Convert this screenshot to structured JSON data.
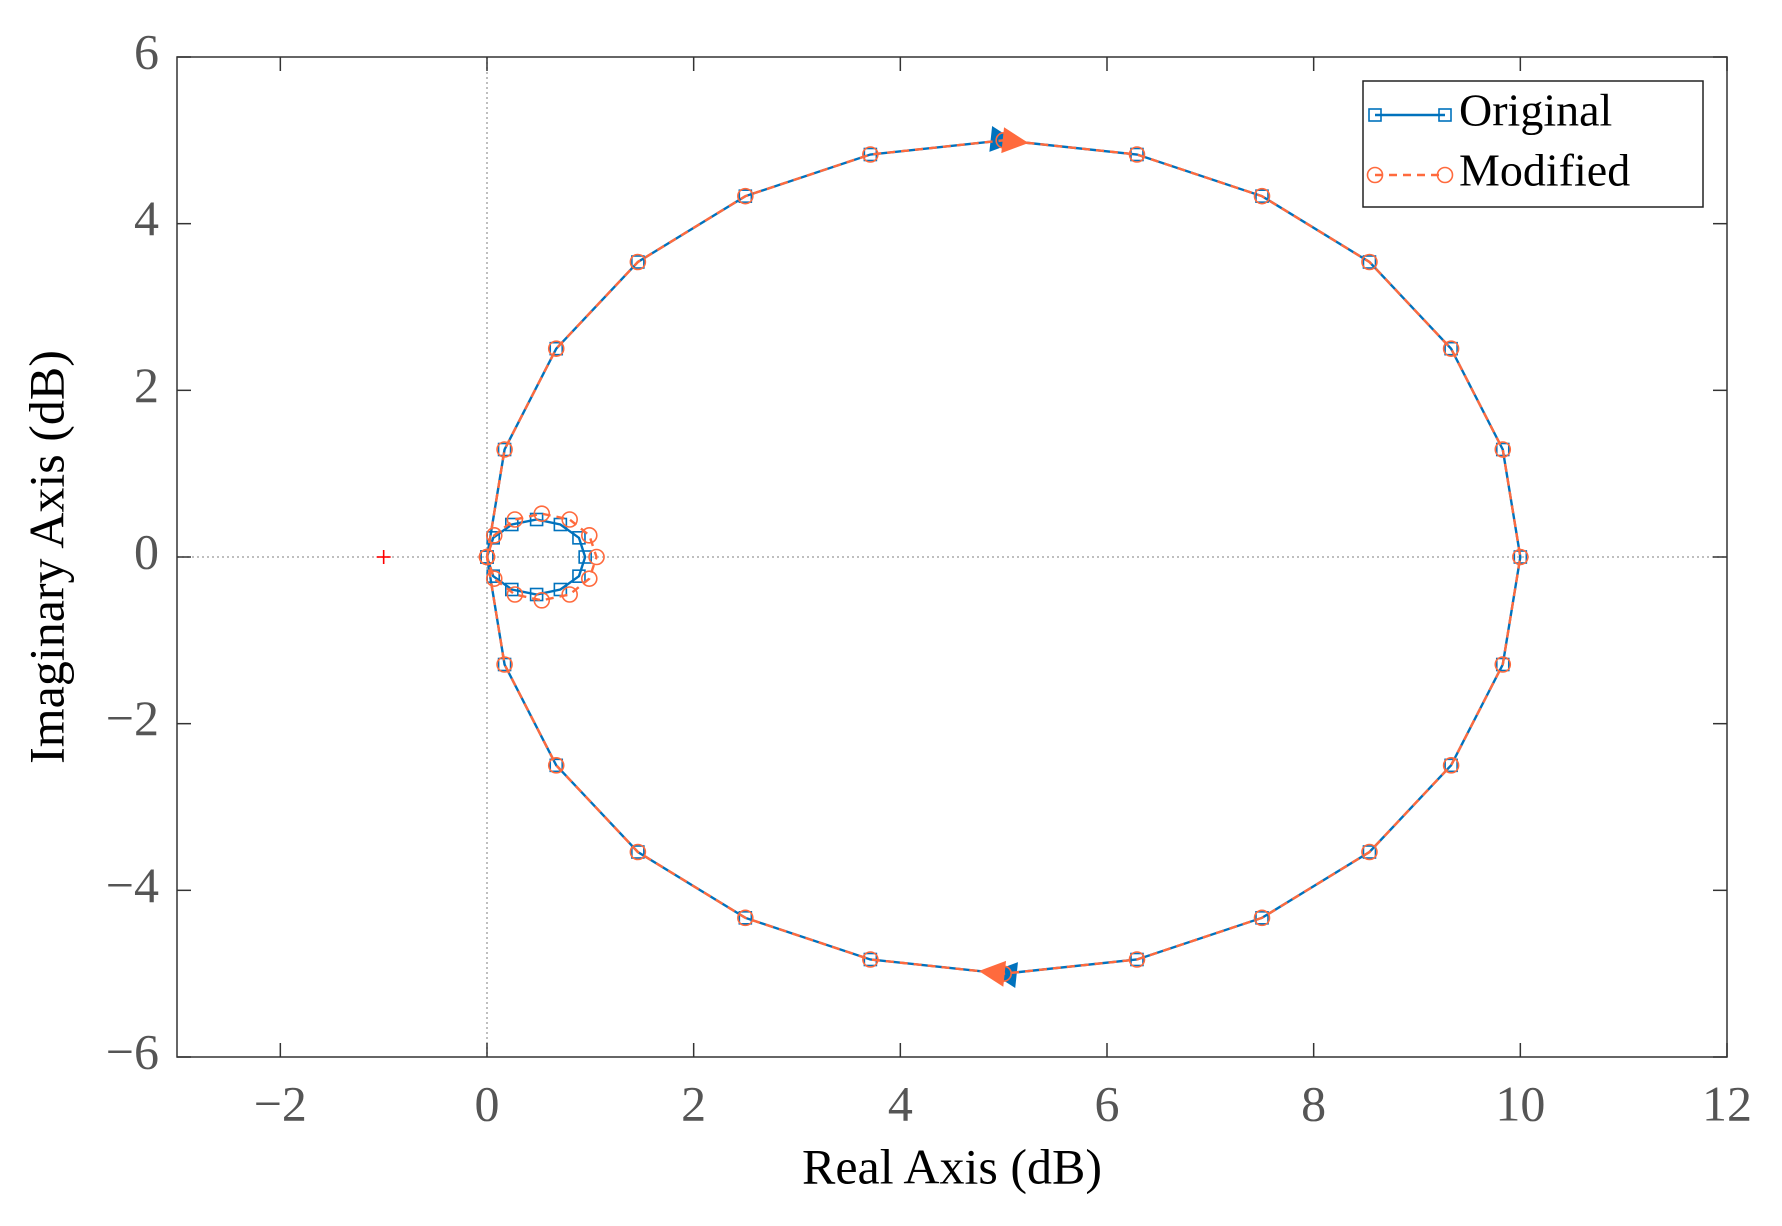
{
  "chart_data": {
    "type": "line",
    "xlabel": "Real Axis (dB)",
    "ylabel": "Imaginary Axis (dB)",
    "xlim": [
      -3,
      12
    ],
    "ylim": [
      -6,
      6
    ],
    "xticks": [
      {
        "value": -2,
        "label": "−2"
      },
      0,
      2,
      4,
      6,
      8,
      10,
      12
    ],
    "yticks": [
      {
        "value": -6,
        "label": "−6"
      },
      {
        "value": -4,
        "label": "−4"
      },
      {
        "value": -2,
        "label": "−2"
      },
      0,
      2,
      4,
      6
    ],
    "zero_lines": true,
    "legend": "upper right",
    "series": [
      {
        "name": "Original",
        "color": "#0072bd",
        "dash": "solid",
        "marker": "square",
        "x": [
          0,
          0.17,
          0.67,
          1.46,
          2.5,
          3.71,
          5,
          6.29,
          7.5,
          8.54,
          9.33,
          9.83,
          10,
          9.83,
          9.33,
          8.54,
          7.5,
          6.29,
          5,
          3.71,
          2.5,
          1.46,
          0.67,
          0.17,
          0,
          0.06,
          0.24,
          0.48,
          0.71,
          0.89,
          0.95,
          0.89,
          0.71,
          0.48,
          0.24,
          0.06,
          0
        ],
        "values": [
          0,
          1.29,
          2.5,
          3.54,
          4.33,
          4.83,
          5,
          4.83,
          4.33,
          3.54,
          2.5,
          1.29,
          0,
          -1.29,
          -2.5,
          -3.54,
          -4.33,
          -4.83,
          -5,
          -4.83,
          -4.33,
          -3.54,
          -2.5,
          -1.29,
          0,
          0.23,
          0.39,
          0.45,
          0.39,
          0.23,
          0,
          -0.23,
          -0.39,
          -0.45,
          -0.39,
          -0.23,
          0
        ]
      },
      {
        "name": "Modified",
        "color": "#ff6a3d",
        "dash": "dashed",
        "marker": "circle",
        "x": [
          0,
          0.17,
          0.67,
          1.46,
          2.5,
          3.71,
          5,
          6.29,
          7.5,
          8.54,
          9.33,
          9.83,
          10,
          9.83,
          9.33,
          8.54,
          7.5,
          6.29,
          5,
          3.71,
          2.5,
          1.46,
          0.67,
          0.17,
          0,
          0.07,
          0.27,
          0.53,
          0.8,
          0.99,
          1.06,
          0.99,
          0.8,
          0.53,
          0.27,
          0.07,
          0
        ],
        "values": [
          0,
          1.29,
          2.5,
          3.54,
          4.33,
          4.83,
          5,
          4.83,
          4.33,
          3.54,
          2.5,
          1.29,
          0,
          -1.29,
          -2.5,
          -3.54,
          -4.33,
          -4.83,
          -5,
          -4.83,
          -4.33,
          -3.54,
          -2.5,
          -1.29,
          0,
          0.26,
          0.45,
          0.52,
          0.45,
          0.26,
          0,
          -0.26,
          -0.45,
          -0.52,
          -0.45,
          -0.26,
          0
        ]
      }
    ],
    "critical_point": {
      "x": -1,
      "y": 0,
      "color": "#ff0000"
    }
  }
}
